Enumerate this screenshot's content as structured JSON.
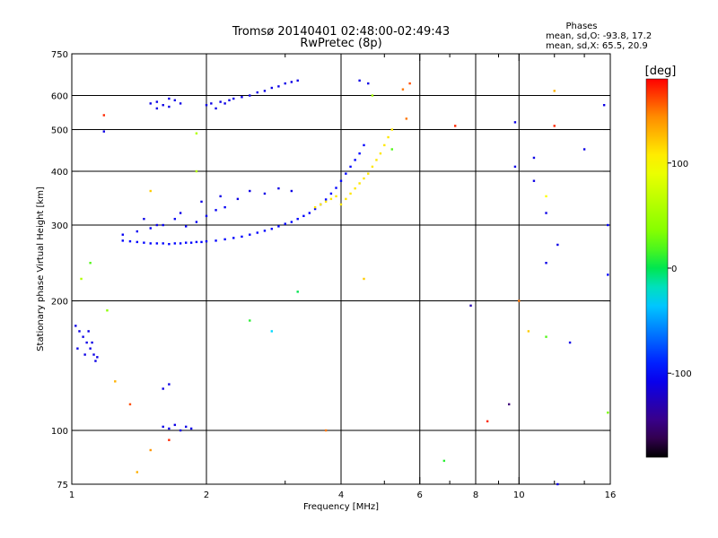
{
  "chart_data": {
    "type": "scatter",
    "title": "Tromsø 20140401 02:48:00-02:49:43",
    "subtitle": "RwPretec (8p)",
    "phases_title": "Phases",
    "phases_o": "mean, sd,O: -93.8, 17.2",
    "phases_x": "mean, sd,X:  65.5, 20.9",
    "xlabel": "Frequency [MHz]",
    "ylabel": "Stationary phase Virtual Height [km]",
    "x_scale": "log",
    "y_scale": "log",
    "xlim": [
      1,
      16
    ],
    "ylim": [
      75,
      750
    ],
    "x_ticks": [
      {
        "value": 1,
        "label": "1"
      },
      {
        "value": 2,
        "label": "2"
      },
      {
        "value": 4,
        "label": "4"
      },
      {
        "value": 6,
        "label": "6"
      },
      {
        "value": 8,
        "label": "8"
      },
      {
        "value": 10,
        "label": "10"
      },
      {
        "value": 16,
        "label": "16"
      }
    ],
    "x_minor_ticks": [
      3,
      5,
      7,
      9,
      12,
      14
    ],
    "x_gridlines": [
      2,
      4,
      6,
      8,
      10
    ],
    "y_ticks": [
      {
        "value": 75,
        "label": "75"
      },
      {
        "value": 100,
        "label": "100"
      },
      {
        "value": 200,
        "label": "200"
      },
      {
        "value": 300,
        "label": "300"
      },
      {
        "value": 400,
        "label": "400"
      },
      {
        "value": 500,
        "label": "500"
      },
      {
        "value": 600,
        "label": "600"
      },
      {
        "value": 750,
        "label": "750"
      }
    ],
    "y_gridlines": [
      100,
      200,
      300,
      400,
      500,
      600
    ],
    "grid": true,
    "colorbar": {
      "label": "[deg]",
      "range": [
        -180,
        180
      ],
      "ticks": [
        {
          "value": 100,
          "label": "100"
        },
        {
          "value": 0,
          "label": "0"
        },
        {
          "value": -100,
          "label": "-100"
        }
      ]
    },
    "points": [
      [
        1.3,
        276,
        -100
      ],
      [
        1.35,
        275,
        -100
      ],
      [
        1.4,
        274,
        -100
      ],
      [
        1.45,
        273,
        -100
      ],
      [
        1.5,
        272,
        -100
      ],
      [
        1.55,
        272,
        -100
      ],
      [
        1.6,
        272,
        -100
      ],
      [
        1.65,
        271,
        -100
      ],
      [
        1.7,
        272,
        -100
      ],
      [
        1.75,
        272,
        -100
      ],
      [
        1.8,
        273,
        -100
      ],
      [
        1.85,
        273,
        -100
      ],
      [
        1.9,
        274,
        -100
      ],
      [
        1.95,
        274,
        -100
      ],
      [
        2.0,
        275,
        -100
      ],
      [
        2.1,
        276,
        -100
      ],
      [
        2.2,
        278,
        -100
      ],
      [
        2.3,
        280,
        -100
      ],
      [
        2.4,
        282,
        -100
      ],
      [
        2.5,
        285,
        -100
      ],
      [
        2.6,
        288,
        -100
      ],
      [
        2.7,
        291,
        -100
      ],
      [
        2.8,
        294,
        -100
      ],
      [
        2.9,
        298,
        -100
      ],
      [
        3.0,
        302,
        -100
      ],
      [
        3.1,
        305,
        -100
      ],
      [
        3.2,
        310,
        -100
      ],
      [
        3.3,
        315,
        -100
      ],
      [
        3.4,
        320,
        -100
      ],
      [
        3.5,
        327,
        -100
      ],
      [
        3.6,
        335,
        -100
      ],
      [
        3.7,
        344,
        -100
      ],
      [
        3.8,
        355,
        -100
      ],
      [
        3.9,
        366,
        -100
      ],
      [
        4.0,
        380,
        -100
      ],
      [
        4.1,
        395,
        -100
      ],
      [
        4.2,
        410,
        -100
      ],
      [
        4.3,
        425,
        -100
      ],
      [
        4.4,
        440,
        -100
      ],
      [
        4.5,
        460,
        -100
      ],
      [
        1.3,
        285,
        -105
      ],
      [
        1.4,
        290,
        -105
      ],
      [
        1.5,
        295,
        -105
      ],
      [
        1.6,
        300,
        -105
      ],
      [
        1.7,
        310,
        -105
      ],
      [
        1.8,
        298,
        -105
      ],
      [
        1.9,
        305,
        -105
      ],
      [
        2.0,
        315,
        -105
      ],
      [
        2.1,
        325,
        -105
      ],
      [
        2.2,
        330,
        -105
      ],
      [
        1.45,
        310,
        -110
      ],
      [
        1.55,
        300,
        -110
      ],
      [
        1.75,
        320,
        -110
      ],
      [
        1.95,
        340,
        -110
      ],
      [
        2.15,
        350,
        -110
      ],
      [
        2.35,
        345,
        -110
      ],
      [
        2.5,
        360,
        -110
      ],
      [
        2.7,
        355,
        -110
      ],
      [
        2.9,
        365,
        -110
      ],
      [
        3.1,
        360,
        -110
      ],
      [
        1.5,
        575,
        -110
      ],
      [
        1.55,
        580,
        -110
      ],
      [
        1.6,
        570,
        -110
      ],
      [
        1.65,
        565,
        -110
      ],
      [
        1.7,
        585,
        -110
      ],
      [
        1.75,
        575,
        -110
      ],
      [
        1.55,
        560,
        -110
      ],
      [
        1.65,
        590,
        -110
      ],
      [
        2.0,
        570,
        -110
      ],
      [
        2.05,
        575,
        -110
      ],
      [
        2.1,
        560,
        -110
      ],
      [
        2.15,
        580,
        -110
      ],
      [
        2.2,
        575,
        -110
      ],
      [
        2.25,
        585,
        -110
      ],
      [
        2.3,
        590,
        -110
      ],
      [
        2.4,
        595,
        -110
      ],
      [
        2.5,
        600,
        -110
      ],
      [
        2.6,
        610,
        -110
      ],
      [
        2.7,
        615,
        -110
      ],
      [
        2.8,
        625,
        -110
      ],
      [
        2.9,
        630,
        -110
      ],
      [
        3.0,
        640,
        -110
      ],
      [
        3.1,
        645,
        -110
      ],
      [
        3.2,
        650,
        -110
      ],
      [
        3.5,
        330,
        110
      ],
      [
        3.6,
        335,
        110
      ],
      [
        3.7,
        340,
        110
      ],
      [
        3.8,
        345,
        110
      ],
      [
        3.9,
        350,
        110
      ],
      [
        4.0,
        335,
        110
      ],
      [
        4.1,
        345,
        110
      ],
      [
        4.2,
        355,
        110
      ],
      [
        4.3,
        365,
        110
      ],
      [
        4.4,
        375,
        110
      ],
      [
        4.5,
        385,
        110
      ],
      [
        4.6,
        395,
        110
      ],
      [
        4.7,
        410,
        110
      ],
      [
        4.8,
        425,
        110
      ],
      [
        4.9,
        440,
        110
      ],
      [
        5.0,
        460,
        110
      ],
      [
        5.1,
        480,
        110
      ],
      [
        5.2,
        500,
        110
      ],
      [
        1.02,
        175,
        -110
      ],
      [
        1.04,
        170,
        -110
      ],
      [
        1.06,
        165,
        -110
      ],
      [
        1.08,
        160,
        -110
      ],
      [
        1.1,
        155,
        -110
      ],
      [
        1.12,
        150,
        -110
      ],
      [
        1.14,
        148,
        -110
      ],
      [
        1.03,
        155,
        -110
      ],
      [
        1.07,
        150,
        -110
      ],
      [
        1.11,
        160,
        -110
      ],
      [
        1.13,
        145,
        -110
      ],
      [
        1.09,
        170,
        -110
      ],
      [
        1.6,
        102,
        -110
      ],
      [
        1.65,
        101,
        -110
      ],
      [
        1.7,
        103,
        -110
      ],
      [
        1.75,
        100,
        -110
      ],
      [
        1.8,
        102,
        -110
      ],
      [
        1.85,
        101,
        -110
      ],
      [
        1.6,
        125,
        -110
      ],
      [
        1.65,
        128,
        -110
      ],
      [
        1.1,
        245,
        20
      ],
      [
        1.05,
        225,
        60
      ],
      [
        1.2,
        190,
        40
      ],
      [
        1.5,
        360,
        120
      ],
      [
        1.9,
        400,
        60
      ],
      [
        2.5,
        180,
        10
      ],
      [
        2.8,
        170,
        -30
      ],
      [
        3.2,
        210,
        0
      ],
      [
        3.7,
        100,
        150
      ],
      [
        4.5,
        225,
        120
      ],
      [
        5.7,
        640,
        160
      ],
      [
        5.5,
        620,
        150
      ],
      [
        6.8,
        85,
        10
      ],
      [
        7.2,
        510,
        170
      ],
      [
        7.8,
        195,
        -130
      ],
      [
        8.5,
        105,
        170
      ],
      [
        9.5,
        115,
        -150
      ],
      [
        10.0,
        200,
        150
      ],
      [
        10.5,
        170,
        120
      ],
      [
        11.5,
        165,
        20
      ],
      [
        12.0,
        510,
        170
      ],
      [
        12.0,
        615,
        130
      ],
      [
        13.0,
        160,
        -110
      ],
      [
        14.0,
        450,
        -110
      ],
      [
        15.5,
        570,
        -110
      ],
      [
        15.8,
        300,
        -100
      ],
      [
        15.8,
        230,
        -100
      ],
      [
        15.8,
        110,
        30
      ],
      [
        12.2,
        75,
        -110
      ],
      [
        1.4,
        80,
        130
      ],
      [
        1.5,
        90,
        140
      ],
      [
        1.65,
        95,
        170
      ],
      [
        1.35,
        115,
        160
      ],
      [
        1.25,
        130,
        130
      ],
      [
        1.18,
        540,
        170
      ],
      [
        1.18,
        495,
        -110
      ],
      [
        1.9,
        490,
        60
      ],
      [
        4.4,
        650,
        -110
      ],
      [
        4.6,
        640,
        -110
      ],
      [
        4.7,
        600,
        50
      ],
      [
        5.2,
        450,
        20
      ],
      [
        5.6,
        530,
        150
      ],
      [
        9.8,
        520,
        -110
      ],
      [
        9.8,
        410,
        -110
      ],
      [
        10.8,
        430,
        -110
      ],
      [
        10.8,
        380,
        -110
      ],
      [
        11.5,
        350,
        100
      ],
      [
        11.5,
        320,
        -110
      ],
      [
        11.5,
        245,
        -110
      ],
      [
        12.2,
        270,
        -110
      ]
    ]
  }
}
